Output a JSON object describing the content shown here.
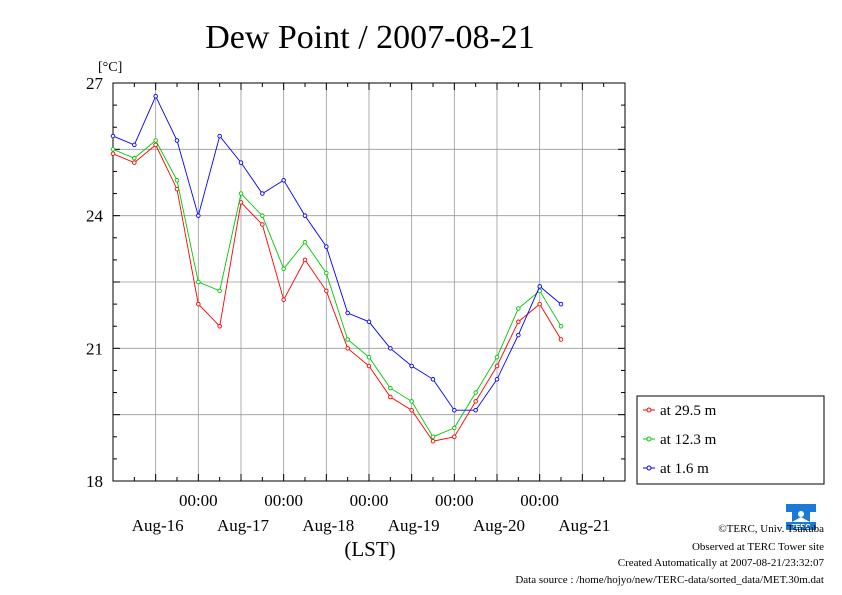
{
  "chart_data": {
    "type": "line",
    "title": "Dew Point / 2007-08-21",
    "ylabel": "[°C]",
    "xlabel": "(LST)",
    "ylim": [
      18,
      27
    ],
    "yticks": [
      18,
      21,
      24,
      27
    ],
    "x_unit": "hours since 2007-08-15 00:00 LST",
    "xlim": [
      0,
      144
    ],
    "xtick_top": [
      "00:00",
      "00:00",
      "00:00",
      "00:00",
      "00:00"
    ],
    "xtick_bottom": [
      "Aug-16",
      "Aug-17",
      "Aug-18",
      "Aug-19",
      "Aug-20",
      "Aug-21"
    ],
    "grid": true,
    "legend_position": "right",
    "series": [
      {
        "name": "at 29.5 m",
        "color": "#ff0000",
        "x": [
          0,
          6,
          12,
          18,
          24,
          30,
          36,
          42,
          48,
          54,
          60,
          66,
          72,
          78,
          84,
          90,
          96,
          102,
          108,
          114,
          120,
          126
        ],
        "values": [
          25.4,
          25.2,
          25.6,
          24.6,
          22.0,
          21.5,
          24.3,
          23.8,
          22.1,
          23.0,
          22.3,
          21.0,
          20.6,
          19.9,
          19.6,
          18.9,
          19.0,
          19.8,
          20.6,
          21.6,
          22.0,
          21.2
        ]
      },
      {
        "name": "at 12.3 m",
        "color": "#00c800",
        "x": [
          0,
          6,
          12,
          18,
          24,
          30,
          36,
          42,
          48,
          54,
          60,
          66,
          72,
          78,
          84,
          90,
          96,
          102,
          108,
          114,
          120,
          126
        ],
        "values": [
          25.5,
          25.3,
          25.7,
          24.8,
          22.5,
          22.3,
          24.5,
          24.0,
          22.8,
          23.4,
          22.7,
          21.2,
          20.8,
          20.1,
          19.8,
          19.0,
          19.2,
          20.0,
          20.8,
          21.9,
          22.3,
          21.5
        ]
      },
      {
        "name": "at 1.6 m",
        "color": "#0000ff",
        "x": [
          0,
          6,
          12,
          18,
          24,
          30,
          36,
          42,
          48,
          54,
          60,
          66,
          72,
          78,
          84,
          90,
          96,
          102,
          108,
          114,
          120,
          126
        ],
        "values": [
          25.8,
          25.6,
          26.7,
          25.7,
          24.0,
          25.8,
          25.2,
          24.5,
          24.8,
          24.0,
          23.3,
          21.8,
          21.6,
          21.0,
          20.6,
          20.3,
          19.6,
          19.6,
          20.3,
          21.3,
          22.4,
          22.0
        ]
      }
    ]
  },
  "credits": {
    "copyright": "©TERC, Univ. Tsukuba",
    "observed": "Observed at TERC Tower site",
    "created": "Created Automatically at 2007-08-21/23:32:07",
    "source": "Data source : /home/hojyo/new/TERC-data/sorted_data/MET.30m.dat",
    "logo_text": "TERC"
  }
}
